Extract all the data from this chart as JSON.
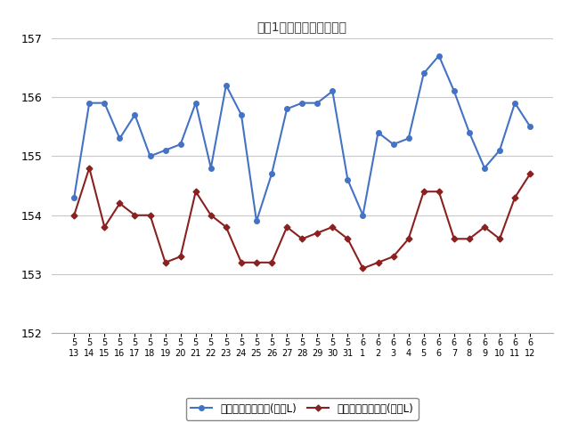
{
  "title": "最近1ヶ月のハイオク価格",
  "x_labels_row1": [
    "5",
    "5",
    "5",
    "5",
    "5",
    "5",
    "5",
    "5",
    "5",
    "5",
    "5",
    "5",
    "5",
    "5",
    "5",
    "5",
    "5",
    "5",
    "5",
    "6",
    "6",
    "6",
    "6",
    "6",
    "6",
    "6",
    "6",
    "6",
    "6",
    "6",
    "6"
  ],
  "x_labels_row2": [
    "13",
    "14",
    "15",
    "16",
    "17",
    "18",
    "19",
    "20",
    "21",
    "22",
    "23",
    "24",
    "25",
    "26",
    "27",
    "28",
    "29",
    "30",
    "31",
    "1",
    "2",
    "3",
    "4",
    "5",
    "6",
    "7",
    "8",
    "9",
    "10",
    "11",
    "12"
  ],
  "blue_values": [
    154.3,
    155.9,
    155.9,
    155.3,
    155.7,
    155.0,
    155.1,
    155.2,
    155.9,
    154.8,
    156.2,
    155.7,
    153.9,
    154.7,
    155.8,
    155.9,
    155.9,
    156.1,
    154.6,
    154.0,
    155.4,
    155.2,
    155.3,
    156.4,
    156.7,
    156.1,
    155.4,
    154.8,
    155.1,
    155.9,
    155.5
  ],
  "red_values": [
    154.0,
    154.8,
    153.8,
    154.2,
    154.0,
    154.0,
    153.2,
    153.3,
    154.4,
    154.0,
    153.8,
    153.2,
    153.2,
    153.2,
    153.8,
    153.6,
    153.7,
    153.8,
    153.6,
    153.1,
    153.2,
    153.3,
    153.6,
    154.4,
    154.4,
    153.6,
    153.6,
    153.8,
    153.6,
    154.3,
    154.7
  ],
  "ylim_min": 152,
  "ylim_max": 157,
  "yticks": [
    152,
    153,
    154,
    155,
    156,
    157
  ],
  "legend_blue": "ハイオク看板価格(円／L)",
  "legend_red": "ハイオク実売価格(円／L)",
  "blue_color": "#4472C4",
  "red_color": "#8B2020",
  "bg_color": "#FFFFFF",
  "grid_color": "#C8C8C8",
  "spine_color": "#AAAAAA"
}
